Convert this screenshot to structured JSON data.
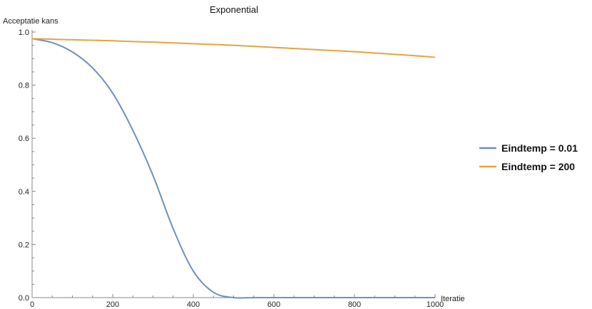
{
  "chart_data": {
    "type": "line",
    "title": "Exponential",
    "xlabel": "Iteratie",
    "ylabel": "Acceptatie kans",
    "xlim": [
      0,
      1000
    ],
    "ylim": [
      0,
      1.0
    ],
    "x_ticks": [
      0,
      200,
      400,
      600,
      800,
      1000
    ],
    "y_ticks": [
      0.0,
      0.2,
      0.4,
      0.6,
      0.8,
      1.0
    ],
    "y_tick_labels": [
      "0.0",
      "0.2",
      "0.4",
      "0.6",
      "0.8",
      "1.0"
    ],
    "legend_position": "right",
    "grid": false,
    "x": [
      0,
      50,
      100,
      150,
      200,
      250,
      300,
      350,
      400,
      450,
      500,
      550,
      600,
      650,
      700,
      750,
      800,
      850,
      900,
      950,
      1000
    ],
    "series": [
      {
        "name": "Eindtemp = 0.01",
        "color": "#6f8fbf",
        "values": [
          0.975,
          0.96,
          0.925,
          0.865,
          0.77,
          0.63,
          0.46,
          0.26,
          0.1,
          0.02,
          0.0,
          0.0,
          0.0,
          0.0,
          0.0,
          0.0,
          0.0,
          0.0,
          0.0,
          0.0,
          0.0
        ]
      },
      {
        "name": "Eindtemp = 200",
        "color": "#e8a33c",
        "values": [
          0.975,
          0.973,
          0.971,
          0.969,
          0.967,
          0.964,
          0.962,
          0.959,
          0.956,
          0.953,
          0.95,
          0.946,
          0.942,
          0.938,
          0.934,
          0.93,
          0.926,
          0.921,
          0.916,
          0.911,
          0.905
        ]
      }
    ]
  }
}
